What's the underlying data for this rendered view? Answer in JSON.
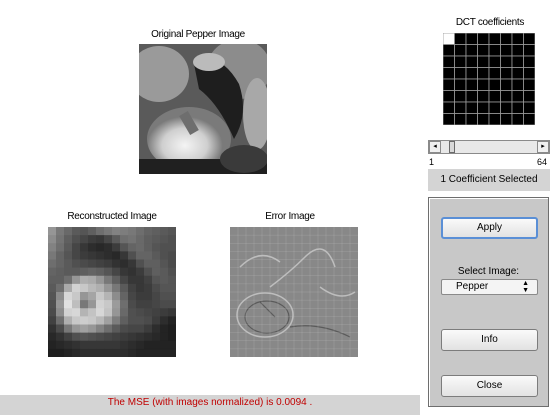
{
  "original": {
    "title": "Original Pepper Image"
  },
  "reconstructed": {
    "title": "Reconstructed Image"
  },
  "error": {
    "title": "Error Image"
  },
  "dct": {
    "title": "DCT coefficients",
    "grid_size": 8,
    "selected_count": 1
  },
  "slider": {
    "min": "1",
    "max": "64",
    "value": 1
  },
  "coef_label": "1 Coefficient Selected",
  "controls": {
    "apply_label": "Apply",
    "select_label": "Select Image:",
    "select_value": "Pepper",
    "info_label": "Info",
    "close_label": "Close"
  },
  "status": "The MSE (with images normalized) is 0.0094 ."
}
